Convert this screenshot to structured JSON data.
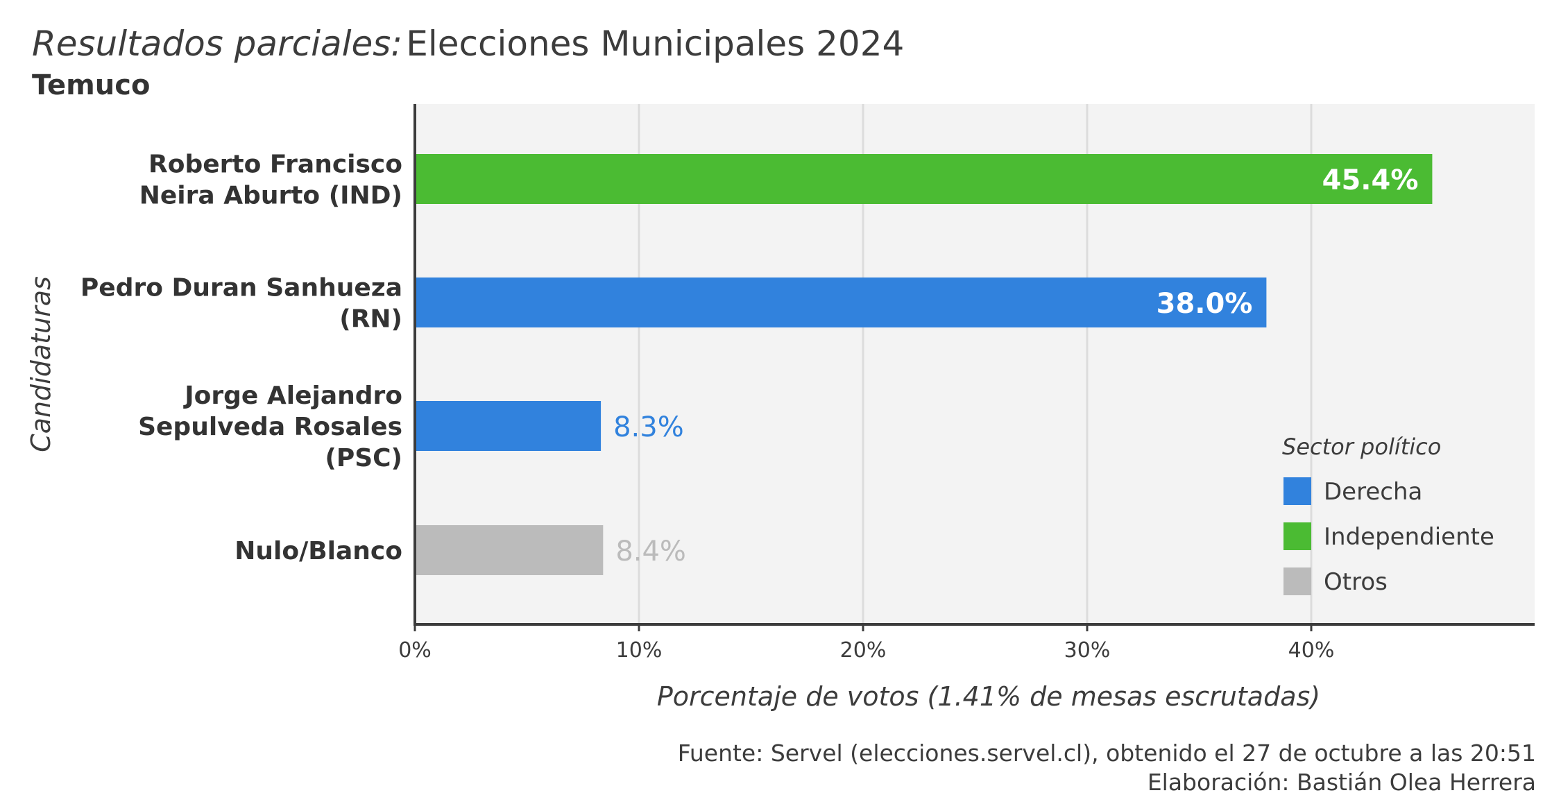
{
  "title": {
    "italic": "Resultados parciales:",
    "main": "Elecciones Municipales 2024"
  },
  "subtitle": "Temuco",
  "footer": {
    "source": "Fuente: Servel (elecciones.servel.cl), obtenido el 27 de octubre a las 20:51",
    "author": "Elaboración: Bastián Olea Herrera"
  },
  "colors": {
    "Derecha": "#3182dd",
    "Independiente": "#4bbb33",
    "Otros": "#bbbbbb",
    "panel": "#f3f3f3",
    "grid": "#dcdcdc",
    "axis": "#3c3c3c",
    "label_inside": "#ffffff"
  },
  "chart_data": {
    "type": "bar",
    "orientation": "horizontal",
    "title": "Resultados parciales: Elecciones Municipales 2024",
    "subtitle": "Temuco",
    "xlabel": "Porcentaje de votos (1.41% de mesas escrutadas)",
    "ylabel": "Candidaturas",
    "xlim": [
      0,
      50
    ],
    "xticks": [
      0,
      10,
      20,
      30,
      40
    ],
    "xtick_labels": [
      "0%",
      "10%",
      "20%",
      "30%",
      "40%"
    ],
    "grid": true,
    "categories": [
      [
        "Roberto Francisco",
        "Neira Aburto (IND)"
      ],
      [
        "Pedro Duran Sanhueza",
        "(RN)"
      ],
      [
        "Jorge Alejandro",
        "Sepulveda Rosales",
        "(PSC)"
      ],
      [
        "Nulo/Blanco"
      ]
    ],
    "values": [
      45.4,
      38.0,
      8.3,
      8.4
    ],
    "value_labels": [
      "45.4%",
      "38.0%",
      "8.3%",
      "8.4%"
    ],
    "sectors": [
      "Independiente",
      "Derecha",
      "Derecha",
      "Otros"
    ],
    "legend": {
      "title": "Sector político",
      "position": "bottom-right",
      "items": [
        "Derecha",
        "Independiente",
        "Otros"
      ]
    }
  }
}
